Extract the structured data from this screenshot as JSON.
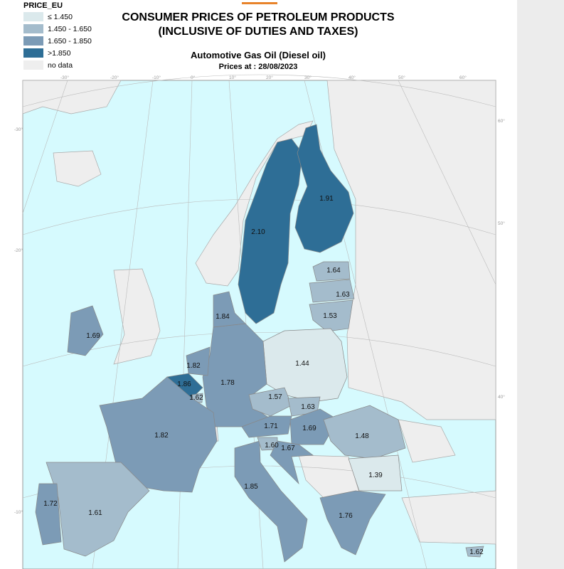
{
  "legend": {
    "title": "PRICE_EU",
    "classes": [
      {
        "label": "≤ 1.450",
        "color": "#dbe9ec"
      },
      {
        "label": "1.450 - 1.650",
        "color": "#a4bccc"
      },
      {
        "label": "1.650 - 1.850",
        "color": "#7c9bb6"
      },
      {
        "label": ">1.850",
        "color": "#2e6e96"
      },
      {
        "label": "no data",
        "color": "#eeeeee"
      }
    ]
  },
  "header": {
    "title_line1": "CONSUMER PRICES OF PETROLEUM PRODUCTS",
    "title_line2": "(INCLUSIVE OF DUTIES AND TAXES)",
    "subtitle": "Automotive Gas Oil (Diesel oil)",
    "date": "Prices at : 28/08/2023"
  },
  "regions": [
    {
      "label": "2.10",
      "color": "#2e6e96"
    },
    {
      "label": "1.91",
      "color": "#2e6e96"
    },
    {
      "label": "1.64",
      "color": "#a4bccc"
    },
    {
      "label": "1.63",
      "color": "#a4bccc"
    },
    {
      "label": "1.53",
      "color": "#a4bccc"
    },
    {
      "label": "1.44",
      "color": "#dbe9ec"
    },
    {
      "label": "1.78",
      "color": "#7c9bb6"
    },
    {
      "label": "1.84",
      "color": "#7c9bb6"
    },
    {
      "label": "1.82",
      "color": "#7c9bb6"
    },
    {
      "label": "1.86",
      "color": "#2e6e96"
    },
    {
      "label": "1.62",
      "color": "#a4bccc"
    },
    {
      "label": "1.82",
      "color": "#7c9bb6"
    },
    {
      "label": "1.61",
      "color": "#a4bccc"
    },
    {
      "label": "1.72",
      "color": "#7c9bb6"
    },
    {
      "label": "1.69",
      "color": "#7c9bb6"
    },
    {
      "label": "1.85",
      "color": "#7c9bb6"
    },
    {
      "label": "1.57",
      "color": "#a4bccc"
    },
    {
      "label": "1.63",
      "color": "#a4bccc"
    },
    {
      "label": "1.71",
      "color": "#7c9bb6"
    },
    {
      "label": "1.69",
      "color": "#7c9bb6"
    },
    {
      "label": "1.60",
      "color": "#a4bccc"
    },
    {
      "label": "1.67",
      "color": "#7c9bb6"
    },
    {
      "label": "1.48",
      "color": "#a4bccc"
    },
    {
      "label": "1.39",
      "color": "#dbe9ec"
    },
    {
      "label": "1.76",
      "color": "#7c9bb6"
    },
    {
      "label": "1.62",
      "color": "#a4bccc"
    }
  ],
  "graticule_labels": [
    "-30°",
    "-20°",
    "-10°",
    "0°",
    "10°",
    "20°",
    "30°",
    "40°",
    "50°",
    "60°",
    "-30°",
    "-20°",
    "-10°",
    "60°",
    "50°",
    "40°"
  ]
}
